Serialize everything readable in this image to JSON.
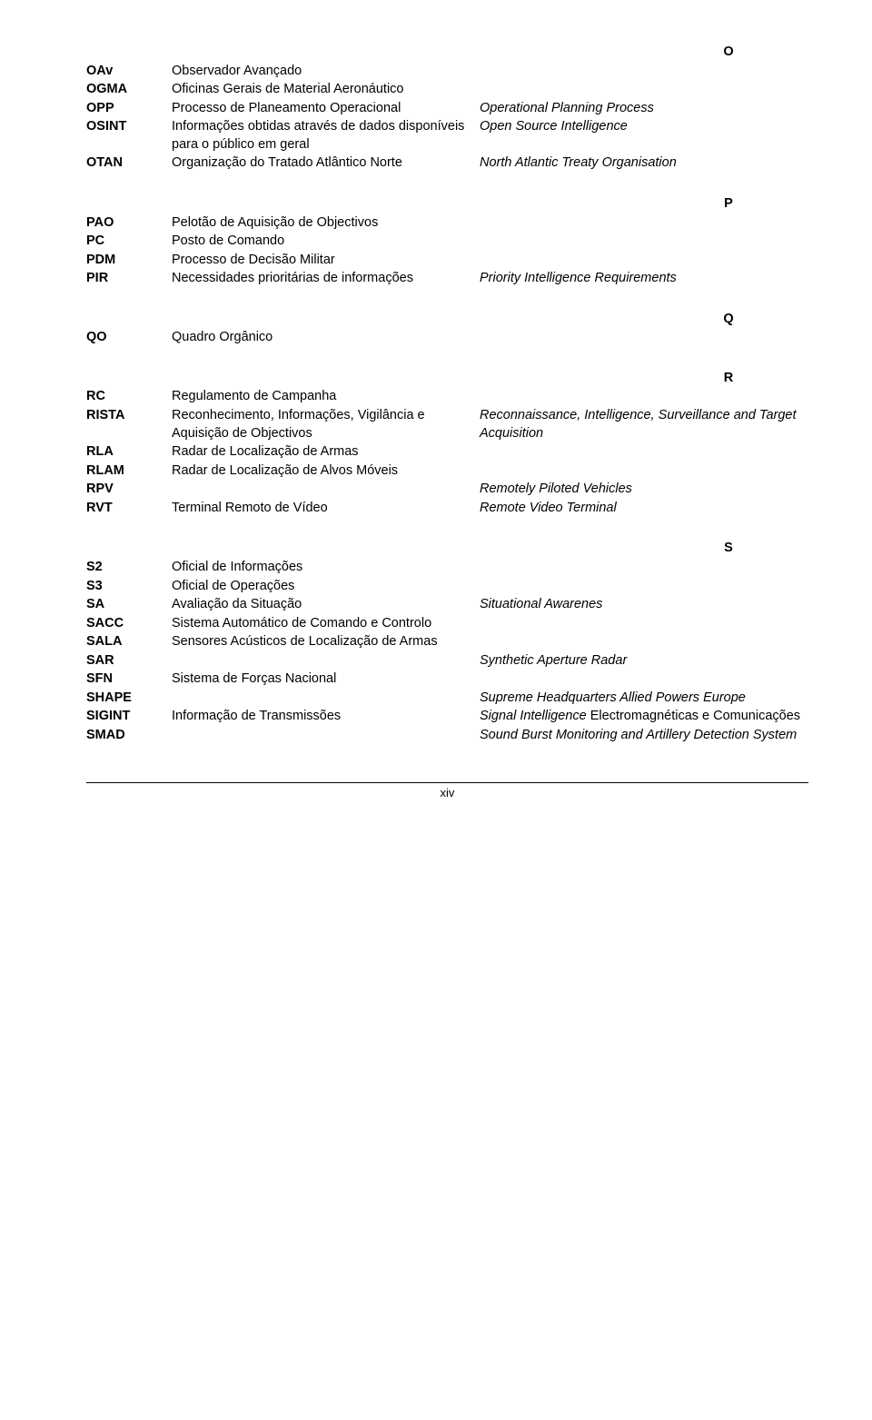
{
  "page_number": "xiv",
  "sections": [
    {
      "letter": "O",
      "rows": [
        {
          "abbr": "OAv",
          "pt": "Observador Avançado",
          "en": ""
        },
        {
          "abbr": "OGMA",
          "pt": "Oficinas Gerais de Material Aeronáutico",
          "en": ""
        },
        {
          "abbr": "OPP",
          "pt": "Processo de Planeamento Operacional",
          "en": "Operational Planning Process"
        },
        {
          "abbr": "OSINT",
          "pt": "Informações obtidas através de dados disponíveis para o público em geral",
          "en": "Open Source Intelligence"
        },
        {
          "abbr": "OTAN",
          "pt": "Organização do Tratado Atlântico Norte",
          "en": "North Atlantic Treaty Organisation"
        }
      ]
    },
    {
      "letter": "P",
      "rows": [
        {
          "abbr": "PAO",
          "pt": "Pelotão de Aquisição de Objectivos",
          "en": ""
        },
        {
          "abbr": "PC",
          "pt": "Posto de Comando",
          "en": ""
        },
        {
          "abbr": "PDM",
          "pt": "Processo de Decisão Militar",
          "en": ""
        },
        {
          "abbr": "PIR",
          "pt": "Necessidades prioritárias de informações",
          "en": "Priority Intelligence Requirements"
        }
      ]
    },
    {
      "letter": "Q",
      "rows": [
        {
          "abbr": "QO",
          "pt": "Quadro Orgânico",
          "en": ""
        }
      ]
    },
    {
      "letter": "R",
      "rows": [
        {
          "abbr": "RC",
          "pt": "Regulamento de Campanha",
          "en": ""
        },
        {
          "abbr": "RISTA",
          "pt": "Reconhecimento, Informações, Vigilância e Aquisição de Objectivos",
          "en": "Reconnaissance, Intelligence, Surveillance and Target Acquisition"
        },
        {
          "abbr": "RLA",
          "pt": "Radar de Localização de Armas",
          "en": ""
        },
        {
          "abbr": "RLAM",
          "pt": "Radar de Localização de Alvos Móveis",
          "en": ""
        },
        {
          "abbr": "RPV",
          "pt": "",
          "en": "Remotely Piloted Vehicles"
        },
        {
          "abbr": "RVT",
          "pt": "Terminal Remoto de Vídeo",
          "en": "Remote Video Terminal"
        }
      ]
    },
    {
      "letter": "S",
      "rows": [
        {
          "abbr": "S2",
          "pt": "Oficial de Informações",
          "en": ""
        },
        {
          "abbr": "S3",
          "pt": "Oficial de Operações",
          "en": ""
        },
        {
          "abbr": "SA",
          "pt": "Avaliação da Situação",
          "en": "Situational Awarenes"
        },
        {
          "abbr": "SACC",
          "pt": "Sistema Automático de Comando e Controlo",
          "en": ""
        },
        {
          "abbr": "SALA",
          "pt": "Sensores Acústicos de Localização de Armas",
          "en": ""
        },
        {
          "abbr": "SAR",
          "pt": "",
          "en": "Synthetic Aperture Radar"
        },
        {
          "abbr": "SFN",
          "pt": "Sistema de Forças Nacional",
          "en": ""
        },
        {
          "abbr": "SHAPE",
          "pt": "",
          "en": "Supreme Headquarters Allied Powers Europe"
        }
      ]
    }
  ],
  "sigint": {
    "abbr": "SIGINT",
    "pt": "Informação de Transmissões",
    "en_italic": "Signal Intelligence",
    "en_plain": " Electromagnéticas e Comunicações"
  },
  "smad": {
    "abbr": "SMAD",
    "en": "Sound Burst Monitoring and Artillery Detection System"
  }
}
